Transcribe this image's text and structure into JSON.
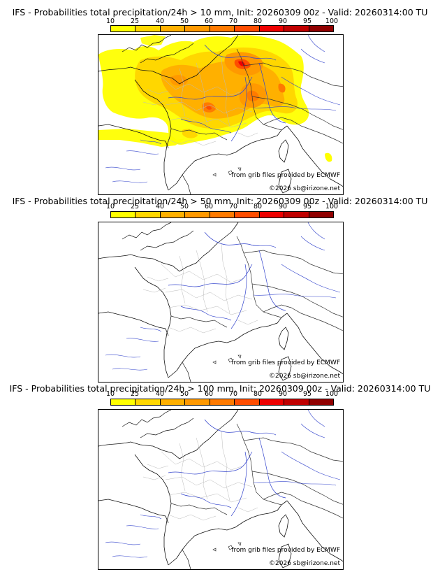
{
  "colorbar": {
    "ticks": [
      "10",
      "25",
      "40",
      "50",
      "60",
      "70",
      "80",
      "90",
      "95",
      "100"
    ],
    "colors": [
      "#ffff00",
      "#ffd700",
      "#ffb000",
      "#ff9900",
      "#ff7a00",
      "#ff4d00",
      "#ee0000",
      "#c00000",
      "#900000",
      "#5a0000"
    ]
  },
  "panels": [
    {
      "title": "IFS - Probabilities total precipitation/24h > 10 mm, Init: 20260309 00z - Valid: 20260314:00 TU",
      "credit_source": "from grib files provided by ECMWF",
      "credit_copyright": "©2026 sb@irizone.net"
    },
    {
      "title": "IFS - Probabilities total precipitation/24h > 50 mm, Init: 20260309 00z - Valid: 20260314:00 TU",
      "credit_source": "from grib files provided by ECMWF",
      "credit_copyright": "©2026 sb@irizone.net"
    },
    {
      "title": "IFS - Probabilities total precipitation/24h > 100 mm, Init: 20260309 00z - Valid: 20260314:00 TU",
      "credit_source": "from grib files provided by ECMWF",
      "credit_copyright": "©2026 sb@irizone.net"
    }
  ]
}
